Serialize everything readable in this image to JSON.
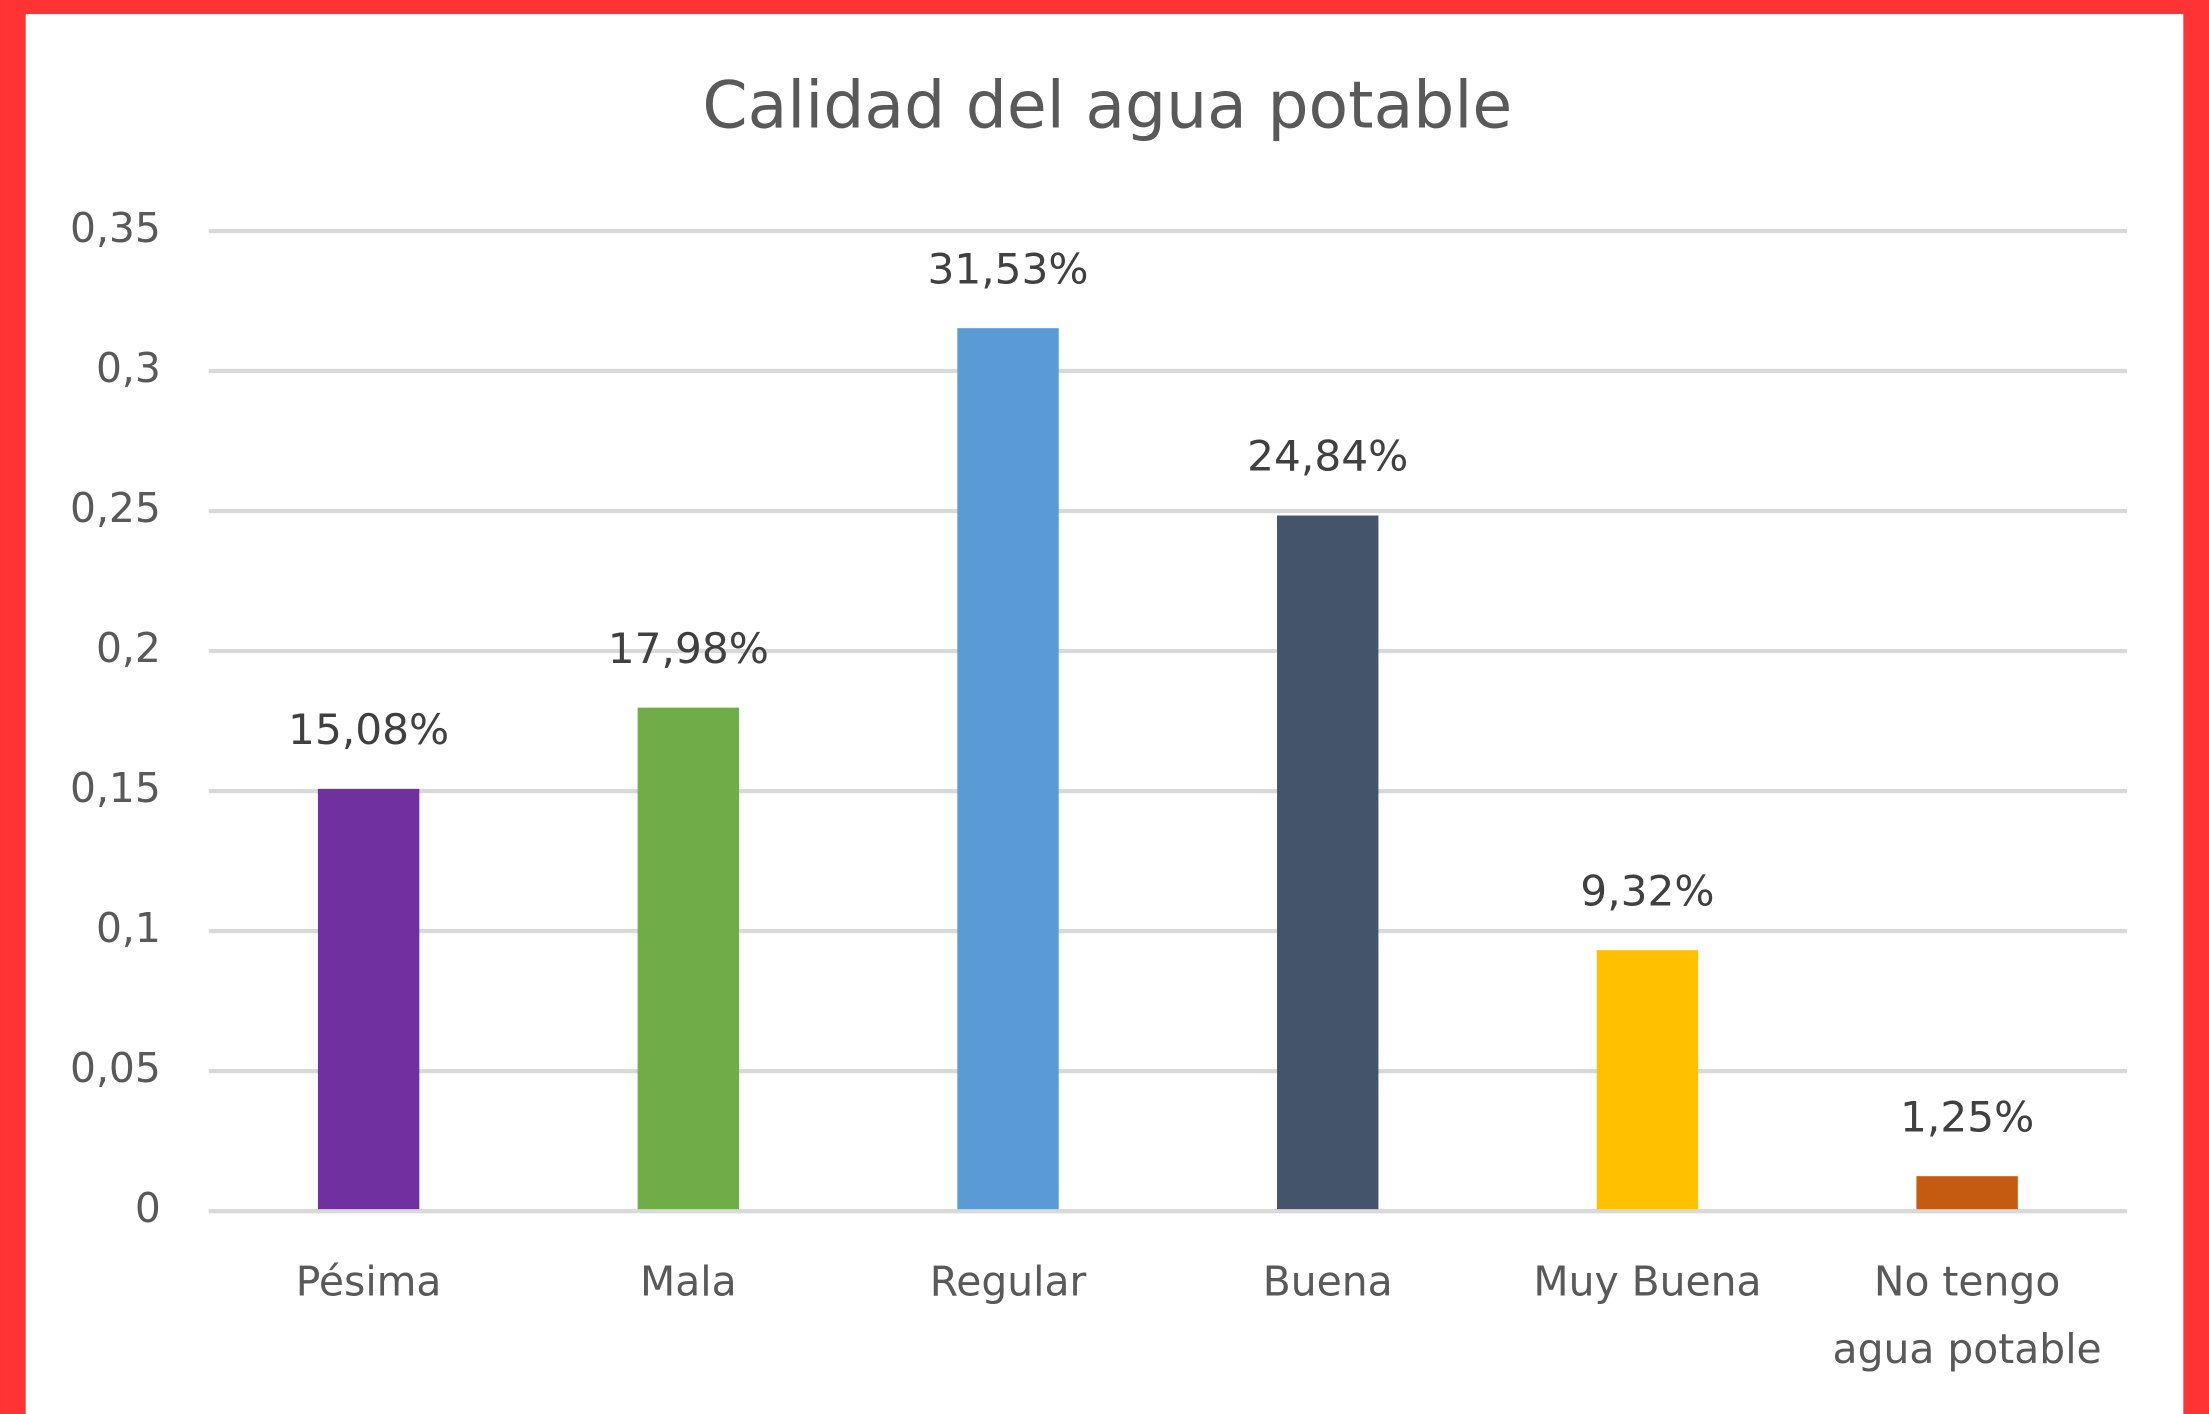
{
  "chart_data": {
    "type": "bar",
    "title": "Calidad del agua potable",
    "categories": [
      "Pésima",
      "Mala",
      "Regular",
      "Buena",
      "Muy Buena",
      "No tengo agua potable"
    ],
    "values": [
      0.1508,
      0.1798,
      0.3153,
      0.2484,
      0.0932,
      0.0125
    ],
    "value_labels": [
      "15,08%",
      "17,98%",
      "31,53%",
      "24,84%",
      "9,32%",
      "1,25%"
    ],
    "colors": [
      "#7030a0",
      "#70ad47",
      "#5b9bd5",
      "#44546a",
      "#ffc000",
      "#c55a11"
    ],
    "ylim": [
      0,
      0.35
    ],
    "yticks": [
      0,
      {
        "value": 0.05,
        "label": "0,05"
      },
      {
        "value": 0.1,
        "label": "0,1"
      },
      {
        "value": 0.15,
        "label": "0,15"
      },
      {
        "value": 0.2,
        "label": "0,2"
      },
      {
        "value": 0.25,
        "label": "0,25"
      },
      {
        "value": 0.3,
        "label": "0,3"
      },
      {
        "value": 0.35,
        "label": "0,35"
      }
    ],
    "grid": true
  }
}
